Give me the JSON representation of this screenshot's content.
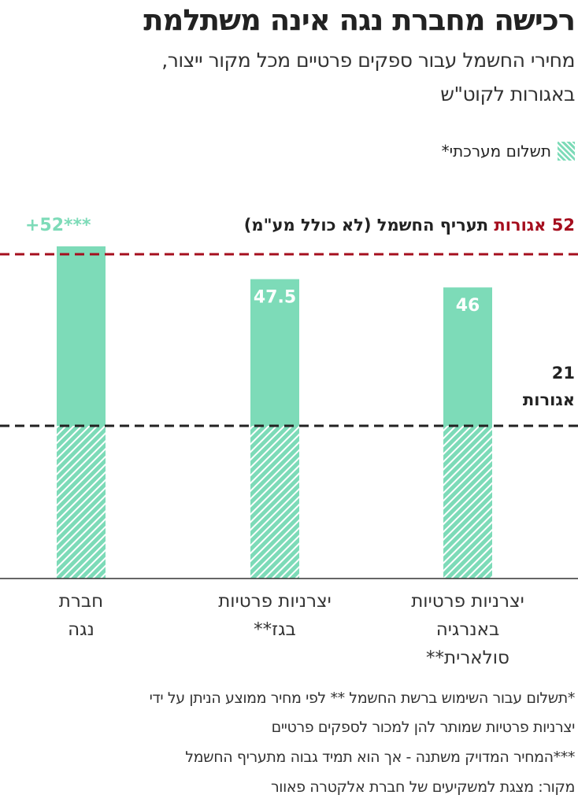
{
  "title": "רכישה מחברת נגה אינה משתלמת",
  "subtitle": [
    "מחירי החשמל עבור ספקים פרטיים מכל מקור ייצור,",
    "באגורות לקוט\"ש"
  ],
  "legend": {
    "label": "תשלום מערכתי*"
  },
  "colors": {
    "bar": "#7ddbb8",
    "tariff_line": "#a50e1e",
    "system_line": "#222222"
  },
  "chart_data": {
    "type": "bar",
    "title": "רכישה מחברת נגה אינה משתלמת",
    "ylabel": "אגורות לקוט\"ש",
    "categories": [
      "יצרניות פרטיות באנרגיה סולארית**",
      "יצרניות פרטיות בגז**",
      "חברת נגה"
    ],
    "category_lines": [
      [
        "יצרניות פרטיות",
        "באנרגיה",
        "סולארית**"
      ],
      [
        "יצרניות פרטיות",
        "בגז**"
      ],
      [
        "חברת",
        "נגה"
      ]
    ],
    "values": [
      46,
      47.5,
      52
    ],
    "value_labels": [
      "46",
      "47.5",
      "+52***"
    ],
    "system_payment": 21,
    "reference_lines": [
      {
        "value": 52,
        "amount_label": "52 אגורות",
        "label": "תעריף החשמל (לא כולל מע\"מ)"
      },
      {
        "value": 21,
        "amount_label": "21",
        "label": "אגורות"
      }
    ],
    "grid": false
  },
  "footnotes": [
    "*תשלום עבור השימוש ברשת החשמל ** לפי מחיר ממוצע הניתן על ידי",
    "יצרניות פרטיות שמותר להן למכור לספקים פרטיים",
    "***המחיר המדויק משתנה - אך הוא תמיד גבוה מתעריף החשמל",
    "מקור: מצגת למשקיעים של חברת אלקטרה פאוור"
  ]
}
